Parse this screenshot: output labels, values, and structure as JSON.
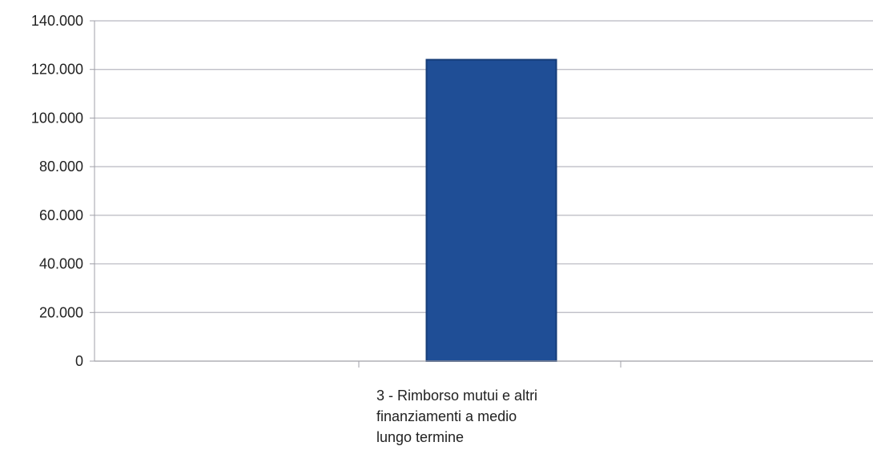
{
  "chart_data": {
    "type": "bar",
    "categories": [
      "3 - Rimborso mutui e altri finanziamenti a medio lungo termine"
    ],
    "category_label_lines": [
      "3 - Rimborso mutui e altri",
      "finanziamenti a medio",
      "lungo termine"
    ],
    "values": [
      124000
    ],
    "ylim": [
      0,
      140000
    ],
    "ytick_labels": [
      "0",
      "20.000",
      "40.000",
      "60.000",
      "80.000",
      "100.000",
      "120.000",
      "140.000"
    ],
    "grid": true,
    "legend": false,
    "title": "",
    "xlabel": "",
    "ylabel": "",
    "colors": {
      "bar": "#1f4e96",
      "bar_edge": "#163c78",
      "grid": "#b8b8c0",
      "axis": "#a0a0a8"
    }
  }
}
